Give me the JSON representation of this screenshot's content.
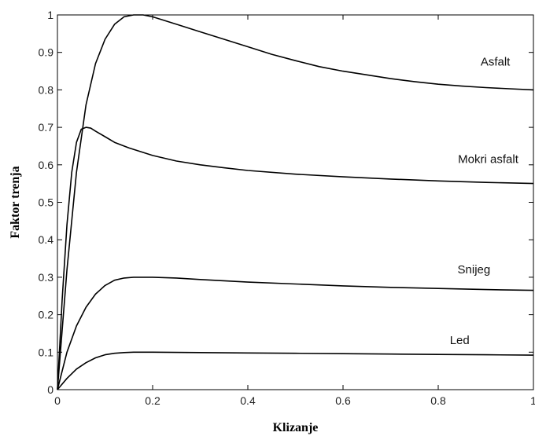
{
  "chart_data": {
    "type": "line",
    "xlabel": "Klizanje",
    "ylabel": "Faktor trenja",
    "xlim": [
      0,
      1
    ],
    "ylim": [
      0,
      1
    ],
    "x_ticks": [
      0,
      0.2,
      0.4,
      0.6,
      0.8,
      1
    ],
    "x_tick_labels": [
      "0",
      "0.2",
      "0.4",
      "0.6",
      "0.8",
      "1"
    ],
    "y_ticks": [
      0,
      0.1,
      0.2,
      0.3,
      0.4,
      0.5,
      0.6,
      0.7,
      0.8,
      0.9,
      1
    ],
    "y_tick_labels": [
      "0",
      "0.1",
      "0.2",
      "0.3",
      "0.4",
      "0.5",
      "0.6",
      "0.7",
      "0.8",
      "0.9",
      "1"
    ],
    "grid": false,
    "series": [
      {
        "name": "Asfalt",
        "label_at": [
          0.92,
          0.865
        ],
        "x": [
          0,
          0.02,
          0.04,
          0.06,
          0.08,
          0.1,
          0.12,
          0.14,
          0.16,
          0.18,
          0.2,
          0.25,
          0.3,
          0.35,
          0.4,
          0.45,
          0.5,
          0.55,
          0.6,
          0.65,
          0.7,
          0.75,
          0.8,
          0.85,
          0.9,
          0.95,
          1.0
        ],
        "y": [
          0,
          0.32,
          0.58,
          0.76,
          0.87,
          0.935,
          0.975,
          0.995,
          1.0,
          1.0,
          0.995,
          0.975,
          0.955,
          0.935,
          0.915,
          0.895,
          0.878,
          0.862,
          0.85,
          0.84,
          0.83,
          0.822,
          0.815,
          0.81,
          0.806,
          0.803,
          0.8
        ]
      },
      {
        "name": "Mokri asfalt",
        "label_at": [
          0.905,
          0.605
        ],
        "x": [
          0,
          0.01,
          0.02,
          0.03,
          0.04,
          0.05,
          0.06,
          0.07,
          0.08,
          0.1,
          0.12,
          0.15,
          0.2,
          0.25,
          0.3,
          0.35,
          0.4,
          0.5,
          0.6,
          0.7,
          0.8,
          0.9,
          1.0
        ],
        "y": [
          0,
          0.24,
          0.44,
          0.58,
          0.66,
          0.695,
          0.7,
          0.698,
          0.69,
          0.675,
          0.66,
          0.645,
          0.625,
          0.61,
          0.6,
          0.592,
          0.585,
          0.575,
          0.568,
          0.562,
          0.557,
          0.553,
          0.55
        ]
      },
      {
        "name": "Snijeg",
        "label_at": [
          0.875,
          0.31
        ],
        "x": [
          0,
          0.02,
          0.04,
          0.06,
          0.08,
          0.1,
          0.12,
          0.14,
          0.16,
          0.18,
          0.2,
          0.25,
          0.3,
          0.4,
          0.5,
          0.6,
          0.7,
          0.8,
          0.9,
          1.0
        ],
        "y": [
          0,
          0.1,
          0.17,
          0.22,
          0.255,
          0.278,
          0.292,
          0.298,
          0.3,
          0.3,
          0.3,
          0.298,
          0.294,
          0.287,
          0.282,
          0.277,
          0.273,
          0.27,
          0.267,
          0.265
        ]
      },
      {
        "name": "Led",
        "label_at": [
          0.845,
          0.122
        ],
        "x": [
          0,
          0.02,
          0.04,
          0.06,
          0.08,
          0.1,
          0.12,
          0.14,
          0.16,
          0.18,
          0.2,
          0.3,
          0.4,
          0.5,
          0.6,
          0.7,
          0.8,
          0.9,
          1.0
        ],
        "y": [
          0,
          0.03,
          0.055,
          0.072,
          0.085,
          0.093,
          0.097,
          0.099,
          0.1,
          0.1,
          0.1,
          0.099,
          0.098,
          0.097,
          0.096,
          0.095,
          0.094,
          0.093,
          0.092
        ]
      }
    ]
  }
}
